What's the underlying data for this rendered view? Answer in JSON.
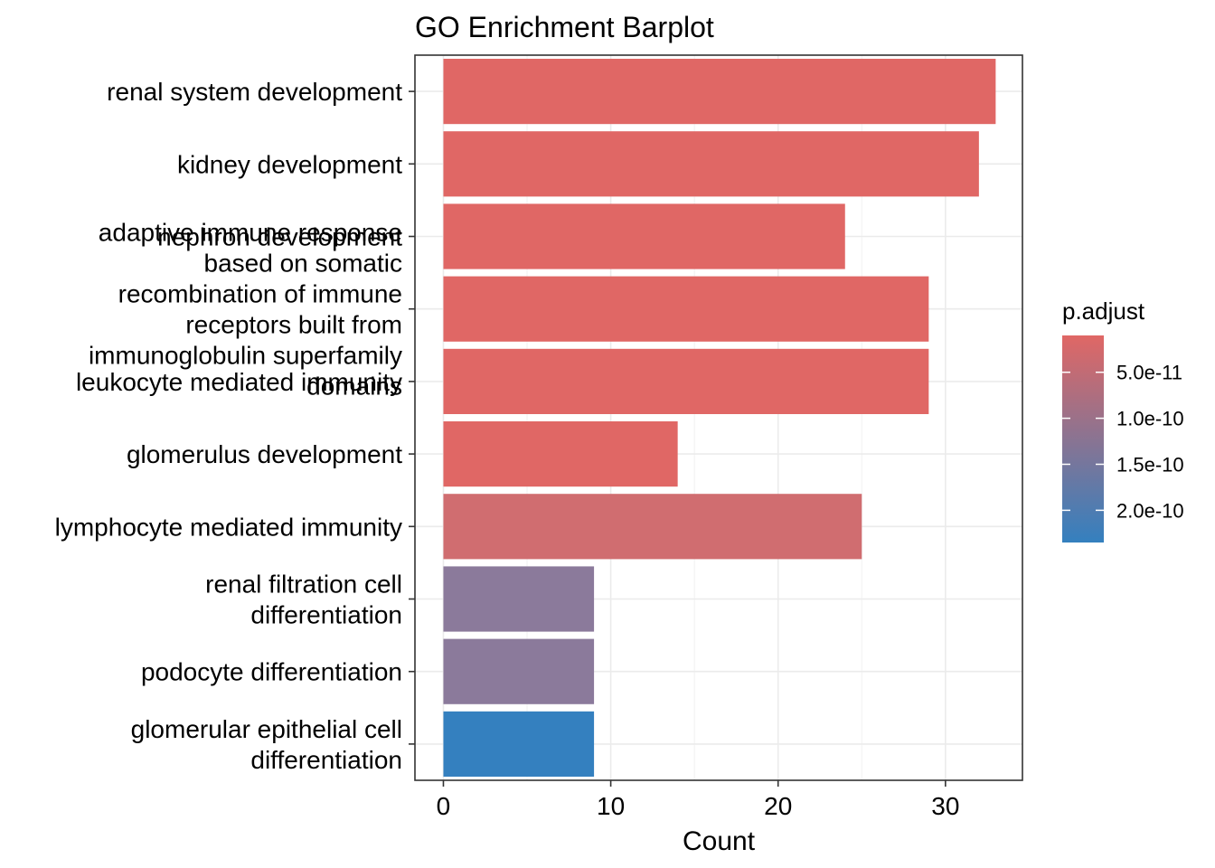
{
  "chart_data": {
    "type": "bar",
    "orientation": "horizontal",
    "title": "GO Enrichment Barplot",
    "xlabel": "Count",
    "ylabel": "",
    "xlim": [
      -1.7,
      34.6
    ],
    "x_ticks": [
      0,
      10,
      20,
      30
    ],
    "grid": true,
    "categories": [
      [
        "renal system development"
      ],
      [
        "kidney development"
      ],
      [
        "nephron development"
      ],
      [
        "adaptive immune response",
        "based on somatic",
        "recombination of immune",
        "receptors built from",
        "immunoglobulin superfamily",
        "domains"
      ],
      [
        "leukocyte mediated immunity"
      ],
      [
        "glomerulus development"
      ],
      [
        "lymphocyte mediated immunity"
      ],
      [
        "renal filtration cell",
        "differentiation"
      ],
      [
        "podocyte differentiation"
      ],
      [
        "glomerular epithelial cell",
        "differentiation"
      ]
    ],
    "values": [
      33,
      32,
      24,
      29,
      29,
      14,
      25,
      9,
      9,
      9
    ],
    "colors": [
      "#E06765",
      "#E06765",
      "#E06765",
      "#E06765",
      "#E06765",
      "#E06765",
      "#D06D70",
      "#8B7A9B",
      "#8B7A9B",
      "#3480BF"
    ],
    "color_scale": {
      "name": "p.adjust",
      "low_color": "#E06765",
      "high_color": "#3480BF",
      "min": 1e-11,
      "max": 2.35e-10,
      "tick_values": [
        5e-11,
        1e-10,
        1.5e-10,
        2e-10
      ],
      "tick_labels": [
        "5.0e-11",
        "1.0e-10",
        "1.5e-10",
        "2.0e-10"
      ]
    },
    "legend_position": "right"
  }
}
